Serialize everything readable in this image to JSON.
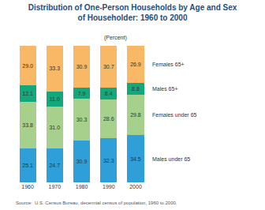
{
  "chart_data": {
    "type": "bar",
    "title": "Distribution of One-Person Households by Age and Sex of Householder: 1960 to 2000",
    "subtitle": "(Percent)",
    "source": "Source:  U.S. Census Bureau, decennial census of population, 1960 to 2000.",
    "categories": [
      "1960",
      "1970",
      "1980",
      "1990",
      "2000"
    ],
    "series": [
      {
        "name": "Males under 65",
        "color": "#2e9fd9",
        "values": [
          25.1,
          24.7,
          30.9,
          32.3,
          34.5
        ],
        "value_labels": [
          "25.1",
          "24.7",
          "30.9",
          "32.3",
          "34.5"
        ]
      },
      {
        "name": "Females under 65",
        "color": "#a8d08d",
        "values": [
          33.8,
          31.0,
          30.3,
          28.6,
          29.8
        ],
        "value_labels": [
          "33.8",
          "31.0",
          "30.3",
          "28.6",
          "29.8"
        ]
      },
      {
        "name": "Males 65+",
        "color": "#13a87b",
        "values": [
          12.1,
          11.0,
          7.9,
          8.4,
          8.8
        ],
        "value_labels": [
          "12.1",
          "11.0",
          "7.9",
          "8.4",
          "8.8"
        ]
      },
      {
        "name": "Females 65+",
        "color": "#f8b865",
        "values": [
          29.0,
          33.3,
          30.9,
          30.7,
          26.9
        ],
        "value_labels": [
          "29.0",
          "33.3",
          "30.9",
          "30.7",
          "26.9"
        ]
      }
    ],
    "ylim": [
      0,
      100
    ],
    "stacked": true,
    "data_labels": true,
    "tick_labels": "x",
    "grid": false
  }
}
